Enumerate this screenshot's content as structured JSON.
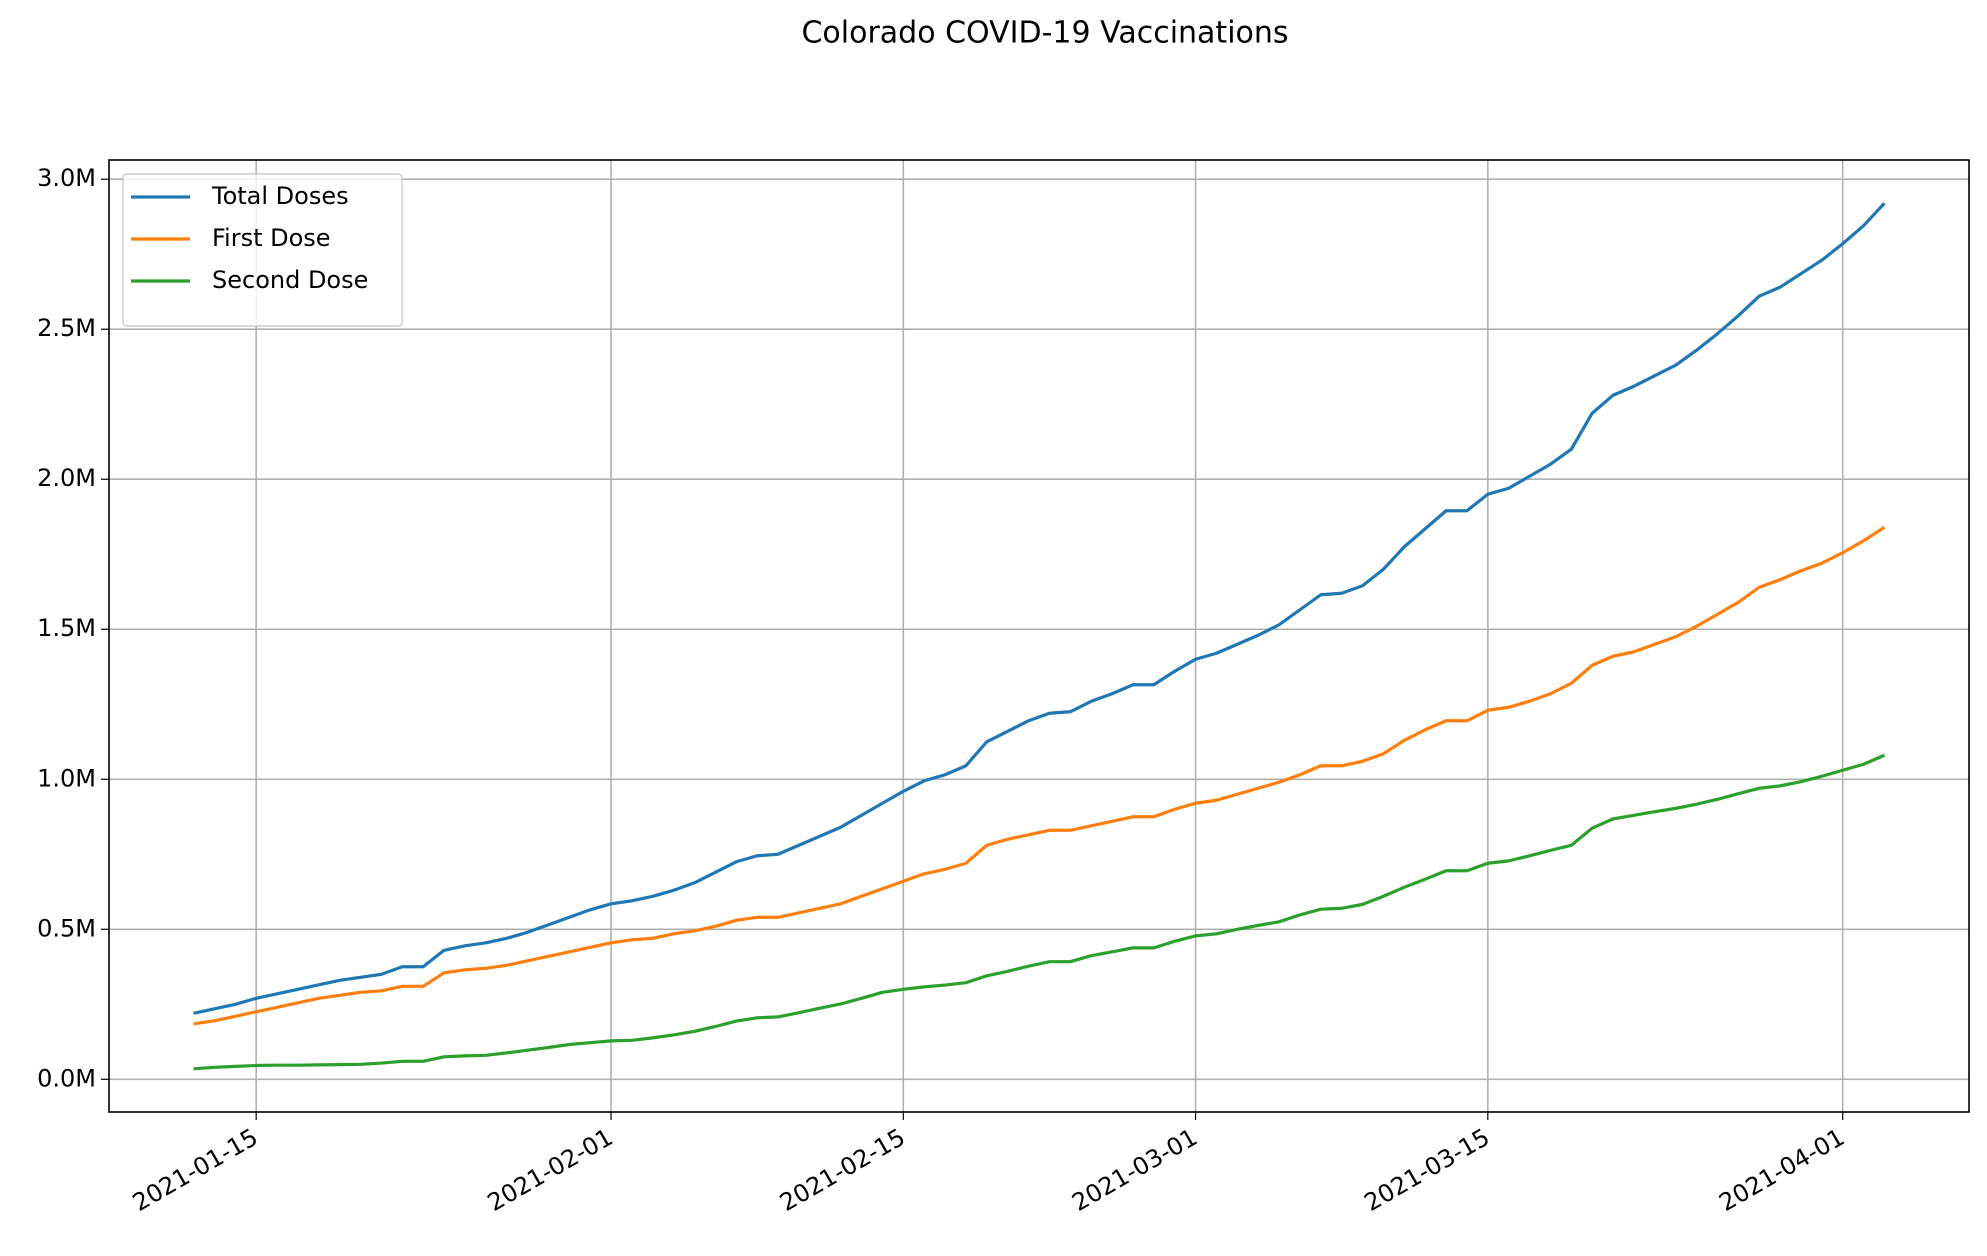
{
  "chart_data": {
    "type": "line",
    "title": "Colorado COVID-19 Vaccinations",
    "x": [
      "2021-01-12",
      "2021-01-13",
      "2021-01-14",
      "2021-01-15",
      "2021-01-16",
      "2021-01-17",
      "2021-01-18",
      "2021-01-19",
      "2021-01-20",
      "2021-01-21",
      "2021-01-22",
      "2021-01-23",
      "2021-01-24",
      "2021-01-25",
      "2021-01-26",
      "2021-01-27",
      "2021-01-28",
      "2021-01-29",
      "2021-01-30",
      "2021-01-31",
      "2021-02-01",
      "2021-02-02",
      "2021-02-03",
      "2021-02-04",
      "2021-02-05",
      "2021-02-06",
      "2021-02-07",
      "2021-02-08",
      "2021-02-09",
      "2021-02-10",
      "2021-02-11",
      "2021-02-12",
      "2021-02-13",
      "2021-02-14",
      "2021-02-15",
      "2021-02-16",
      "2021-02-17",
      "2021-02-18",
      "2021-02-19",
      "2021-02-20",
      "2021-02-21",
      "2021-02-22",
      "2021-02-23",
      "2021-02-24",
      "2021-02-25",
      "2021-02-26",
      "2021-02-27",
      "2021-02-28",
      "2021-03-01",
      "2021-03-02",
      "2021-03-03",
      "2021-03-04",
      "2021-03-05",
      "2021-03-06",
      "2021-03-07",
      "2021-03-08",
      "2021-03-09",
      "2021-03-10",
      "2021-03-11",
      "2021-03-12",
      "2021-03-13",
      "2021-03-14",
      "2021-03-15",
      "2021-03-16",
      "2021-03-17",
      "2021-03-18",
      "2021-03-19",
      "2021-03-20",
      "2021-03-21",
      "2021-03-22",
      "2021-03-23",
      "2021-03-24",
      "2021-03-25",
      "2021-03-26",
      "2021-03-27",
      "2021-03-28",
      "2021-03-29",
      "2021-03-30",
      "2021-03-31",
      "2021-04-01",
      "2021-04-02",
      "2021-04-03"
    ],
    "series": [
      {
        "name": "Total Doses",
        "color": "#1f77b4",
        "values": [
          220000,
          235000,
          250000,
          270000,
          285000,
          300000,
          315000,
          330000,
          340000,
          350000,
          375000,
          375000,
          430000,
          445000,
          455000,
          470000,
          490000,
          515000,
          540000,
          565000,
          585000,
          595000,
          610000,
          630000,
          655000,
          690000,
          725000,
          745000,
          750000,
          780000,
          810000,
          840000,
          880000,
          920000,
          960000,
          995000,
          1015000,
          1045000,
          1125000,
          1160000,
          1195000,
          1220000,
          1225000,
          1260000,
          1285000,
          1315000,
          1315000,
          1360000,
          1400000,
          1420000,
          1450000,
          1480000,
          1515000,
          1565000,
          1615000,
          1620000,
          1645000,
          1700000,
          1775000,
          1835000,
          1895000,
          1895000,
          1950000,
          1970000,
          2010000,
          2050000,
          2100000,
          2220000,
          2280000,
          2310000,
          2345000,
          2380000,
          2430000,
          2485000,
          2545000,
          2610000,
          2640000,
          2685000,
          2730000,
          2785000,
          2845000,
          2920000
        ]
      },
      {
        "name": "First Dose",
        "color": "#ff7f0e",
        "values": [
          185000,
          195000,
          210000,
          225000,
          240000,
          255000,
          270000,
          280000,
          290000,
          295000,
          310000,
          310000,
          355000,
          365000,
          370000,
          380000,
          395000,
          410000,
          425000,
          440000,
          455000,
          465000,
          470000,
          485000,
          495000,
          510000,
          530000,
          540000,
          540000,
          555000,
          570000,
          585000,
          610000,
          635000,
          660000,
          685000,
          700000,
          720000,
          780000,
          800000,
          815000,
          830000,
          830000,
          845000,
          860000,
          875000,
          875000,
          900000,
          920000,
          930000,
          950000,
          970000,
          990000,
          1015000,
          1045000,
          1045000,
          1060000,
          1085000,
          1130000,
          1165000,
          1195000,
          1195000,
          1230000,
          1240000,
          1260000,
          1285000,
          1320000,
          1380000,
          1410000,
          1425000,
          1450000,
          1475000,
          1510000,
          1550000,
          1590000,
          1640000,
          1665000,
          1695000,
          1720000,
          1755000,
          1795000,
          1840000
        ]
      },
      {
        "name": "Second Dose",
        "color": "#2ca02c",
        "values": [
          35000,
          40000,
          43000,
          46000,
          47000,
          47000,
          48000,
          49000,
          50000,
          54000,
          60000,
          60000,
          75000,
          78000,
          80000,
          88000,
          97000,
          106000,
          116000,
          122000,
          128000,
          130000,
          138000,
          148000,
          160000,
          176000,
          194000,
          205000,
          208000,
          222000,
          237000,
          251000,
          270000,
          290000,
          300000,
          308000,
          314000,
          322000,
          345000,
          360000,
          377000,
          392000,
          392000,
          412000,
          425000,
          438000,
          438000,
          460000,
          478000,
          485000,
          500000,
          513000,
          525000,
          548000,
          567000,
          570000,
          583000,
          610000,
          640000,
          667000,
          695000,
          695000,
          720000,
          728000,
          745000,
          763000,
          780000,
          837000,
          868000,
          880000,
          892000,
          903000,
          917000,
          933000,
          952000,
          970000,
          978000,
          992000,
          1010000,
          1030000,
          1050000,
          1080000
        ]
      }
    ],
    "xlim": [
      "2021-01-07T22:48:00",
      "2021-04-07T01:12:00"
    ],
    "xticks": [
      "2021-01-15",
      "2021-02-01",
      "2021-02-15",
      "2021-03-01",
      "2021-03-15",
      "2021-04-01"
    ],
    "ylim": [
      -109000,
      3064000
    ],
    "yticks": [
      {
        "value": 0,
        "label": "0.0M"
      },
      {
        "value": 500000,
        "label": "0.5M"
      },
      {
        "value": 1000000,
        "label": "1.0M"
      },
      {
        "value": 1500000,
        "label": "1.5M"
      },
      {
        "value": 2000000,
        "label": "2.0M"
      },
      {
        "value": 2500000,
        "label": "2.5M"
      },
      {
        "value": 3000000,
        "label": "3.0M"
      }
    ],
    "grid": true,
    "legend": "upper left"
  }
}
